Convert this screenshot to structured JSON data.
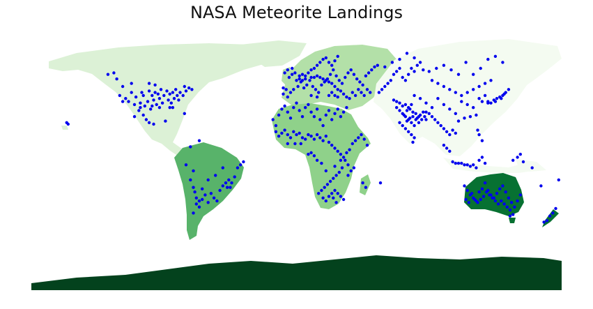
{
  "title": "NASA Meteorite Landings",
  "projection": "equirectangular",
  "point_color": "#0000ee",
  "continents": [
    {
      "name": "Europe",
      "color": "#b3e0a8"
    },
    {
      "name": "North America",
      "color": "#dcf1d6"
    },
    {
      "name": "Asia",
      "color": "#f4fbf1"
    },
    {
      "name": "Africa",
      "color": "#8fd18a"
    },
    {
      "name": "South America",
      "color": "#58b36a"
    },
    {
      "name": "Oceania",
      "color": "#077132"
    },
    {
      "name": "Antarctica",
      "color": "#03421d"
    }
  ],
  "landings_lonlat": [
    [
      -122,
      49
    ],
    [
      -118,
      44
    ],
    [
      -112,
      40
    ],
    [
      -109,
      37
    ],
    [
      -105,
      40
    ],
    [
      -104,
      38
    ],
    [
      -100,
      41
    ],
    [
      -98,
      38
    ],
    [
      -97,
      35
    ],
    [
      -96,
      40
    ],
    [
      -94,
      39
    ],
    [
      -93,
      36
    ],
    [
      -92,
      42
    ],
    [
      -90,
      38
    ],
    [
      -88,
      41
    ],
    [
      -87,
      35
    ],
    [
      -86,
      39
    ],
    [
      -85,
      33
    ],
    [
      -84,
      40
    ],
    [
      -83,
      36
    ],
    [
      -82,
      42
    ],
    [
      -81,
      38
    ],
    [
      -80,
      35
    ],
    [
      -79,
      40
    ],
    [
      -77,
      38
    ],
    [
      -75,
      41
    ],
    [
      -73,
      43
    ],
    [
      -71,
      42
    ],
    [
      -76,
      44
    ],
    [
      -95,
      32
    ],
    [
      -98,
      31
    ],
    [
      -101,
      34
    ],
    [
      -106,
      33
    ],
    [
      -110,
      32
    ],
    [
      -114,
      34
    ],
    [
      -103,
      31
    ],
    [
      -107,
      28
    ],
    [
      -104,
      25
    ],
    [
      -102,
      22
    ],
    [
      -100,
      20
    ],
    [
      -97,
      19
    ],
    [
      -110,
      24
    ],
    [
      -106,
      30
    ],
    [
      -89,
      21
    ],
    [
      -120,
      38
    ],
    [
      -116,
      36
    ],
    [
      -124,
      53
    ],
    [
      -128,
      52
    ],
    [
      -99,
      29
    ],
    [
      -91,
      33
    ],
    [
      -93,
      30
    ],
    [
      -86,
      30
    ],
    [
      -84,
      30
    ],
    [
      -96,
      45
    ],
    [
      -100,
      46
    ],
    [
      -112,
      46
    ],
    [
      -118,
      34
    ],
    [
      -76,
      26
    ],
    [
      -155,
      19
    ],
    [
      -156,
      20
    ],
    [
      -70,
      -12
    ],
    [
      -72,
      -18
    ],
    [
      -70,
      -23
    ],
    [
      -69,
      -26
    ],
    [
      -68,
      -30
    ],
    [
      -66,
      -32
    ],
    [
      -64,
      -31
    ],
    [
      -62,
      -28
    ],
    [
      -60,
      -33
    ],
    [
      -58,
      -27
    ],
    [
      -56,
      -30
    ],
    [
      -54,
      -32
    ],
    [
      -52,
      -25
    ],
    [
      -50,
      -22
    ],
    [
      -48,
      -20
    ],
    [
      -46,
      -18
    ],
    [
      -44,
      -20
    ],
    [
      -42,
      -16
    ],
    [
      -40,
      -10
    ],
    [
      -38,
      -8
    ],
    [
      -36,
      -6
    ],
    [
      -50,
      -10
    ],
    [
      -55,
      -15
    ],
    [
      -47,
      -23
    ],
    [
      -45,
      -23
    ],
    [
      -66,
      -36
    ],
    [
      -70,
      -40
    ],
    [
      -68,
      -34
    ],
    [
      -75,
      -8
    ],
    [
      -72,
      4
    ],
    [
      -66,
      8
    ],
    [
      -60,
      -18
    ],
    [
      -64,
      -24
    ],
    [
      -9,
      39
    ],
    [
      -6,
      37
    ],
    [
      -4,
      40
    ],
    [
      -2,
      42
    ],
    [
      1,
      44
    ],
    [
      3,
      47
    ],
    [
      5,
      43
    ],
    [
      7,
      45
    ],
    [
      9,
      48
    ],
    [
      11,
      44
    ],
    [
      13,
      42
    ],
    [
      15,
      40
    ],
    [
      17,
      45
    ],
    [
      19,
      47
    ],
    [
      21,
      49
    ],
    [
      23,
      52
    ],
    [
      25,
      55
    ],
    [
      27,
      51
    ],
    [
      29,
      48
    ],
    [
      31,
      46
    ],
    [
      33,
      50
    ],
    [
      35,
      53
    ],
    [
      37,
      55
    ],
    [
      39,
      52
    ],
    [
      41,
      49
    ],
    [
      43,
      47
    ],
    [
      45,
      45
    ],
    [
      47,
      51
    ],
    [
      49,
      53
    ],
    [
      51,
      55
    ],
    [
      53,
      57
    ],
    [
      55,
      58
    ],
    [
      -5,
      50
    ],
    [
      -3,
      52
    ],
    [
      -1,
      53
    ],
    [
      2,
      51
    ],
    [
      4,
      52
    ],
    [
      6,
      51
    ],
    [
      8,
      53
    ],
    [
      10,
      55
    ],
    [
      12,
      56
    ],
    [
      14,
      58
    ],
    [
      16,
      60
    ],
    [
      18,
      62
    ],
    [
      20,
      63
    ],
    [
      22,
      60
    ],
    [
      24,
      58
    ],
    [
      26,
      61
    ],
    [
      28,
      64
    ],
    [
      -8,
      53
    ],
    [
      -6,
      55
    ],
    [
      -3,
      56
    ],
    [
      0,
      48
    ],
    [
      2,
      49
    ],
    [
      4,
      48
    ],
    [
      6,
      49
    ],
    [
      10,
      50
    ],
    [
      12,
      50
    ],
    [
      14,
      51
    ],
    [
      16,
      50
    ],
    [
      18,
      49
    ],
    [
      20,
      48
    ],
    [
      22,
      47
    ],
    [
      24,
      46
    ],
    [
      26,
      44
    ],
    [
      28,
      42
    ],
    [
      30,
      41
    ],
    [
      32,
      39
    ],
    [
      34,
      37
    ],
    [
      36,
      36
    ],
    [
      38,
      40
    ],
    [
      40,
      38
    ],
    [
      42,
      42
    ],
    [
      44,
      40
    ],
    [
      46,
      38
    ],
    [
      48,
      42
    ],
    [
      50,
      40
    ],
    [
      -7,
      42
    ],
    [
      -9,
      43
    ],
    [
      10,
      38
    ],
    [
      14,
      37
    ],
    [
      22,
      38
    ],
    [
      24,
      40
    ],
    [
      26,
      38
    ],
    [
      28,
      37
    ],
    [
      -16,
      22
    ],
    [
      -14,
      18
    ],
    [
      -12,
      25
    ],
    [
      -10,
      29
    ],
    [
      -8,
      31
    ],
    [
      -6,
      27
    ],
    [
      -4,
      23
    ],
    [
      -2,
      30
    ],
    [
      0,
      33
    ],
    [
      2,
      28
    ],
    [
      4,
      24
    ],
    [
      6,
      30
    ],
    [
      8,
      32
    ],
    [
      10,
      27
    ],
    [
      12,
      24
    ],
    [
      14,
      29
    ],
    [
      16,
      22
    ],
    [
      18,
      18
    ],
    [
      20,
      25
    ],
    [
      22,
      28
    ],
    [
      24,
      22
    ],
    [
      26,
      26
    ],
    [
      28,
      29
    ],
    [
      30,
      24
    ],
    [
      32,
      27
    ],
    [
      34,
      30
    ],
    [
      -14,
      14
    ],
    [
      -12,
      11
    ],
    [
      -10,
      13
    ],
    [
      -8,
      15
    ],
    [
      -6,
      12
    ],
    [
      -4,
      10
    ],
    [
      -2,
      14
    ],
    [
      0,
      12
    ],
    [
      2,
      13
    ],
    [
      4,
      10
    ],
    [
      6,
      9
    ],
    [
      8,
      12
    ],
    [
      10,
      11
    ],
    [
      12,
      9
    ],
    [
      14,
      12
    ],
    [
      16,
      10
    ],
    [
      18,
      8
    ],
    [
      20,
      11
    ],
    [
      22,
      7
    ],
    [
      24,
      5
    ],
    [
      26,
      3
    ],
    [
      28,
      1
    ],
    [
      30,
      -1
    ],
    [
      32,
      -3
    ],
    [
      34,
      0
    ],
    [
      36,
      2
    ],
    [
      38,
      6
    ],
    [
      40,
      8
    ],
    [
      42,
      10
    ],
    [
      44,
      12
    ],
    [
      46,
      9
    ],
    [
      48,
      5
    ],
    [
      33,
      -5
    ],
    [
      35,
      -8
    ],
    [
      31,
      -10
    ],
    [
      29,
      -13
    ],
    [
      27,
      -15
    ],
    [
      25,
      -17
    ],
    [
      23,
      -19
    ],
    [
      21,
      -21
    ],
    [
      19,
      -23
    ],
    [
      17,
      -25
    ],
    [
      15,
      -27
    ],
    [
      18,
      -30
    ],
    [
      20,
      -32
    ],
    [
      22,
      -29
    ],
    [
      24,
      -27
    ],
    [
      26,
      -25
    ],
    [
      28,
      -27
    ],
    [
      30,
      -29
    ],
    [
      32,
      -31
    ],
    [
      27,
      -33
    ],
    [
      25,
      -30
    ],
    [
      45,
      -20
    ],
    [
      47,
      -23
    ],
    [
      57,
      -20
    ],
    [
      35,
      -15
    ],
    [
      37,
      -12
    ],
    [
      39,
      -10
    ],
    [
      30,
      -5
    ],
    [
      26,
      -9
    ],
    [
      20,
      -12
    ],
    [
      17,
      -7
    ],
    [
      14,
      -5
    ],
    [
      12,
      -2
    ],
    [
      10,
      0
    ],
    [
      -6,
      6
    ],
    [
      -1,
      6
    ],
    [
      3,
      6
    ],
    [
      8,
      -1
    ],
    [
      56,
      40
    ],
    [
      58,
      42
    ],
    [
      60,
      44
    ],
    [
      62,
      46
    ],
    [
      64,
      48
    ],
    [
      66,
      52
    ],
    [
      68,
      54
    ],
    [
      70,
      56
    ],
    [
      72,
      50
    ],
    [
      74,
      48
    ],
    [
      76,
      52
    ],
    [
      78,
      56
    ],
    [
      80,
      54
    ],
    [
      82,
      58
    ],
    [
      84,
      60
    ],
    [
      86,
      55
    ],
    [
      90,
      54
    ],
    [
      95,
      56
    ],
    [
      100,
      58
    ],
    [
      105,
      55
    ],
    [
      110,
      52
    ],
    [
      115,
      60
    ],
    [
      120,
      52
    ],
    [
      125,
      56
    ],
    [
      130,
      62
    ],
    [
      135,
      64
    ],
    [
      140,
      60
    ],
    [
      60,
      57
    ],
    [
      65,
      60
    ],
    [
      70,
      62
    ],
    [
      75,
      66
    ],
    [
      80,
      63
    ],
    [
      92,
      48
    ],
    [
      96,
      46
    ],
    [
      100,
      44
    ],
    [
      104,
      42
    ],
    [
      108,
      40
    ],
    [
      112,
      38
    ],
    [
      116,
      40
    ],
    [
      120,
      42
    ],
    [
      124,
      44
    ],
    [
      128,
      46
    ],
    [
      132,
      48
    ],
    [
      112,
      34
    ],
    [
      116,
      32
    ],
    [
      120,
      30
    ],
    [
      124,
      36
    ],
    [
      128,
      38
    ],
    [
      130,
      34
    ],
    [
      132,
      33
    ],
    [
      134,
      35
    ],
    [
      136,
      36
    ],
    [
      138,
      37
    ],
    [
      140,
      38
    ],
    [
      142,
      40
    ],
    [
      144,
      42
    ],
    [
      135,
      34
    ],
    [
      139,
      36
    ],
    [
      141,
      39
    ],
    [
      130,
      33
    ],
    [
      126,
      34
    ],
    [
      122,
      25
    ],
    [
      118,
      24
    ],
    [
      114,
      23
    ],
    [
      110,
      21
    ],
    [
      108,
      26
    ],
    [
      104,
      29
    ],
    [
      100,
      32
    ],
    [
      96,
      36
    ],
    [
      92,
      30
    ],
    [
      88,
      33
    ],
    [
      84,
      36
    ],
    [
      80,
      38
    ],
    [
      68,
      30
    ],
    [
      70,
      28
    ],
    [
      72,
      26
    ],
    [
      74,
      24
    ],
    [
      76,
      22
    ],
    [
      78,
      20
    ],
    [
      80,
      18
    ],
    [
      82,
      23
    ],
    [
      84,
      25
    ],
    [
      86,
      27
    ],
    [
      88,
      22
    ],
    [
      70,
      20
    ],
    [
      72,
      18
    ],
    [
      74,
      16
    ],
    [
      76,
      14
    ],
    [
      78,
      12
    ],
    [
      80,
      10
    ],
    [
      79,
      7
    ],
    [
      73,
      25
    ],
    [
      75,
      28
    ],
    [
      77,
      29
    ],
    [
      79,
      27
    ],
    [
      81,
      26
    ],
    [
      83,
      24
    ],
    [
      85,
      22
    ],
    [
      87,
      24
    ],
    [
      75,
      21
    ],
    [
      77,
      23
    ],
    [
      79,
      24
    ],
    [
      81,
      22
    ],
    [
      83,
      20
    ],
    [
      76,
      30
    ],
    [
      78,
      32
    ],
    [
      74,
      32
    ],
    [
      72,
      31
    ],
    [
      70,
      33
    ],
    [
      68,
      34
    ],
    [
      66,
      35
    ],
    [
      88,
      27
    ],
    [
      90,
      26
    ],
    [
      92,
      24
    ],
    [
      94,
      22
    ],
    [
      96,
      20
    ],
    [
      98,
      18
    ],
    [
      100,
      16
    ],
    [
      102,
      14
    ],
    [
      104,
      12
    ],
    [
      106,
      15
    ],
    [
      108,
      13
    ],
    [
      100,
      5
    ],
    [
      102,
      3
    ],
    [
      104,
      1
    ],
    [
      110,
      -7
    ],
    [
      112,
      -7
    ],
    [
      114,
      -8
    ],
    [
      116,
      -8
    ],
    [
      118,
      -9
    ],
    [
      106,
      -6
    ],
    [
      108,
      -7
    ],
    [
      120,
      -8
    ],
    [
      122,
      -10
    ],
    [
      124,
      -5
    ],
    [
      126,
      -3
    ],
    [
      128,
      -7
    ],
    [
      147,
      -5
    ],
    [
      150,
      -3
    ],
    [
      152,
      -1
    ],
    [
      154,
      -6
    ],
    [
      160,
      -10
    ],
    [
      126,
      8
    ],
    [
      124,
      12
    ],
    [
      123,
      15
    ],
    [
      114,
      -22
    ],
    [
      116,
      -25
    ],
    [
      118,
      -28
    ],
    [
      120,
      -30
    ],
    [
      122,
      -32
    ],
    [
      124,
      -26
    ],
    [
      126,
      -24
    ],
    [
      128,
      -20
    ],
    [
      130,
      -25
    ],
    [
      132,
      -28
    ],
    [
      134,
      -30
    ],
    [
      136,
      -27
    ],
    [
      138,
      -24
    ],
    [
      140,
      -22
    ],
    [
      142,
      -26
    ],
    [
      144,
      -30
    ],
    [
      146,
      -33
    ],
    [
      148,
      -36
    ],
    [
      150,
      -32
    ],
    [
      152,
      -28
    ],
    [
      145,
      -38
    ],
    [
      143,
      -36
    ],
    [
      141,
      -34
    ],
    [
      139,
      -32
    ],
    [
      137,
      -34
    ],
    [
      135,
      -32
    ],
    [
      133,
      -30
    ],
    [
      131,
      -28
    ],
    [
      129,
      -26
    ],
    [
      127,
      -29
    ],
    [
      125,
      -31
    ],
    [
      123,
      -33
    ],
    [
      121,
      -31
    ],
    [
      119,
      -27
    ],
    [
      117,
      -33
    ],
    [
      115,
      -31
    ],
    [
      145,
      -42
    ],
    [
      147,
      -41
    ],
    [
      172,
      -42
    ],
    [
      174,
      -40
    ],
    [
      176,
      -37
    ],
    [
      168,
      -46
    ],
    [
      170,
      -45
    ],
    [
      166,
      -22
    ],
    [
      178,
      -18
    ]
  ]
}
